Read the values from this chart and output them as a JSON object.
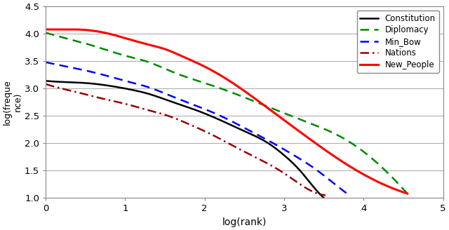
{
  "xlabel": "log(rank)",
  "ylabel": "log(freque-\nnce)",
  "xlim": [
    0,
    5
  ],
  "ylim": [
    1.0,
    4.5
  ],
  "yticks": [
    1.0,
    1.5,
    2.0,
    2.5,
    3.0,
    3.5,
    4.0,
    4.5
  ],
  "xticks": [
    0,
    1,
    2,
    3,
    4,
    5
  ],
  "background_color": "#ffffff",
  "grid_color": "#b0b0b0",
  "series": [
    {
      "label": "Constitution",
      "color": "#000000",
      "linestyle": "solid",
      "linewidth": 1.8,
      "points_x": [
        0.0,
        0.2,
        0.5,
        0.8,
        1.0,
        1.3,
        1.6,
        1.9,
        2.2,
        2.5,
        2.8,
        3.0,
        3.2,
        3.4,
        3.5
      ],
      "points_y": [
        3.14,
        3.12,
        3.1,
        3.05,
        3.0,
        2.9,
        2.75,
        2.6,
        2.42,
        2.22,
        2.0,
        1.78,
        1.5,
        1.15,
        1.0
      ]
    },
    {
      "label": "Diplomacy",
      "color": "#008800",
      "linestyle": "dashed",
      "linewidth": 1.8,
      "points_x": [
        0.0,
        0.3,
        0.6,
        1.0,
        1.3,
        1.6,
        2.0,
        2.3,
        2.6,
        3.0,
        3.3,
        3.6,
        3.9,
        4.2,
        4.55
      ],
      "points_y": [
        4.02,
        3.9,
        3.78,
        3.6,
        3.48,
        3.3,
        3.1,
        2.95,
        2.78,
        2.55,
        2.38,
        2.2,
        1.95,
        1.6,
        1.08
      ]
    },
    {
      "label": "Min_Bow",
      "color": "#0000ff",
      "linestyle": "dashed",
      "linewidth": 1.8,
      "points_x": [
        0.0,
        0.2,
        0.5,
        0.8,
        1.0,
        1.3,
        1.6,
        1.9,
        2.2,
        2.5,
        2.8,
        3.1,
        3.4,
        3.7,
        3.82
      ],
      "points_y": [
        3.48,
        3.42,
        3.33,
        3.22,
        3.14,
        3.02,
        2.85,
        2.68,
        2.5,
        2.28,
        2.05,
        1.8,
        1.52,
        1.18,
        1.05
      ]
    },
    {
      "label": "Nations",
      "color": "#990000",
      "linestyle": "dashdot",
      "linewidth": 1.8,
      "points_x": [
        0.0,
        0.2,
        0.4,
        0.7,
        1.0,
        1.3,
        1.5,
        1.8,
        2.1,
        2.4,
        2.7,
        3.0,
        3.2,
        3.42,
        3.52
      ],
      "points_y": [
        3.08,
        3.0,
        2.93,
        2.82,
        2.72,
        2.6,
        2.52,
        2.35,
        2.15,
        1.92,
        1.7,
        1.45,
        1.25,
        1.08,
        1.05
      ]
    },
    {
      "label": "New_People",
      "color": "#ff0000",
      "linestyle": "solid",
      "linewidth": 2.2,
      "points_x": [
        0.0,
        0.2,
        0.5,
        0.8,
        1.0,
        1.3,
        1.5,
        1.7,
        2.0,
        2.3,
        2.6,
        3.0,
        3.3,
        3.8,
        4.2,
        4.55
      ],
      "points_y": [
        4.08,
        4.08,
        4.07,
        4.0,
        3.92,
        3.8,
        3.72,
        3.6,
        3.4,
        3.15,
        2.85,
        2.42,
        2.1,
        1.6,
        1.28,
        1.08
      ]
    }
  ]
}
